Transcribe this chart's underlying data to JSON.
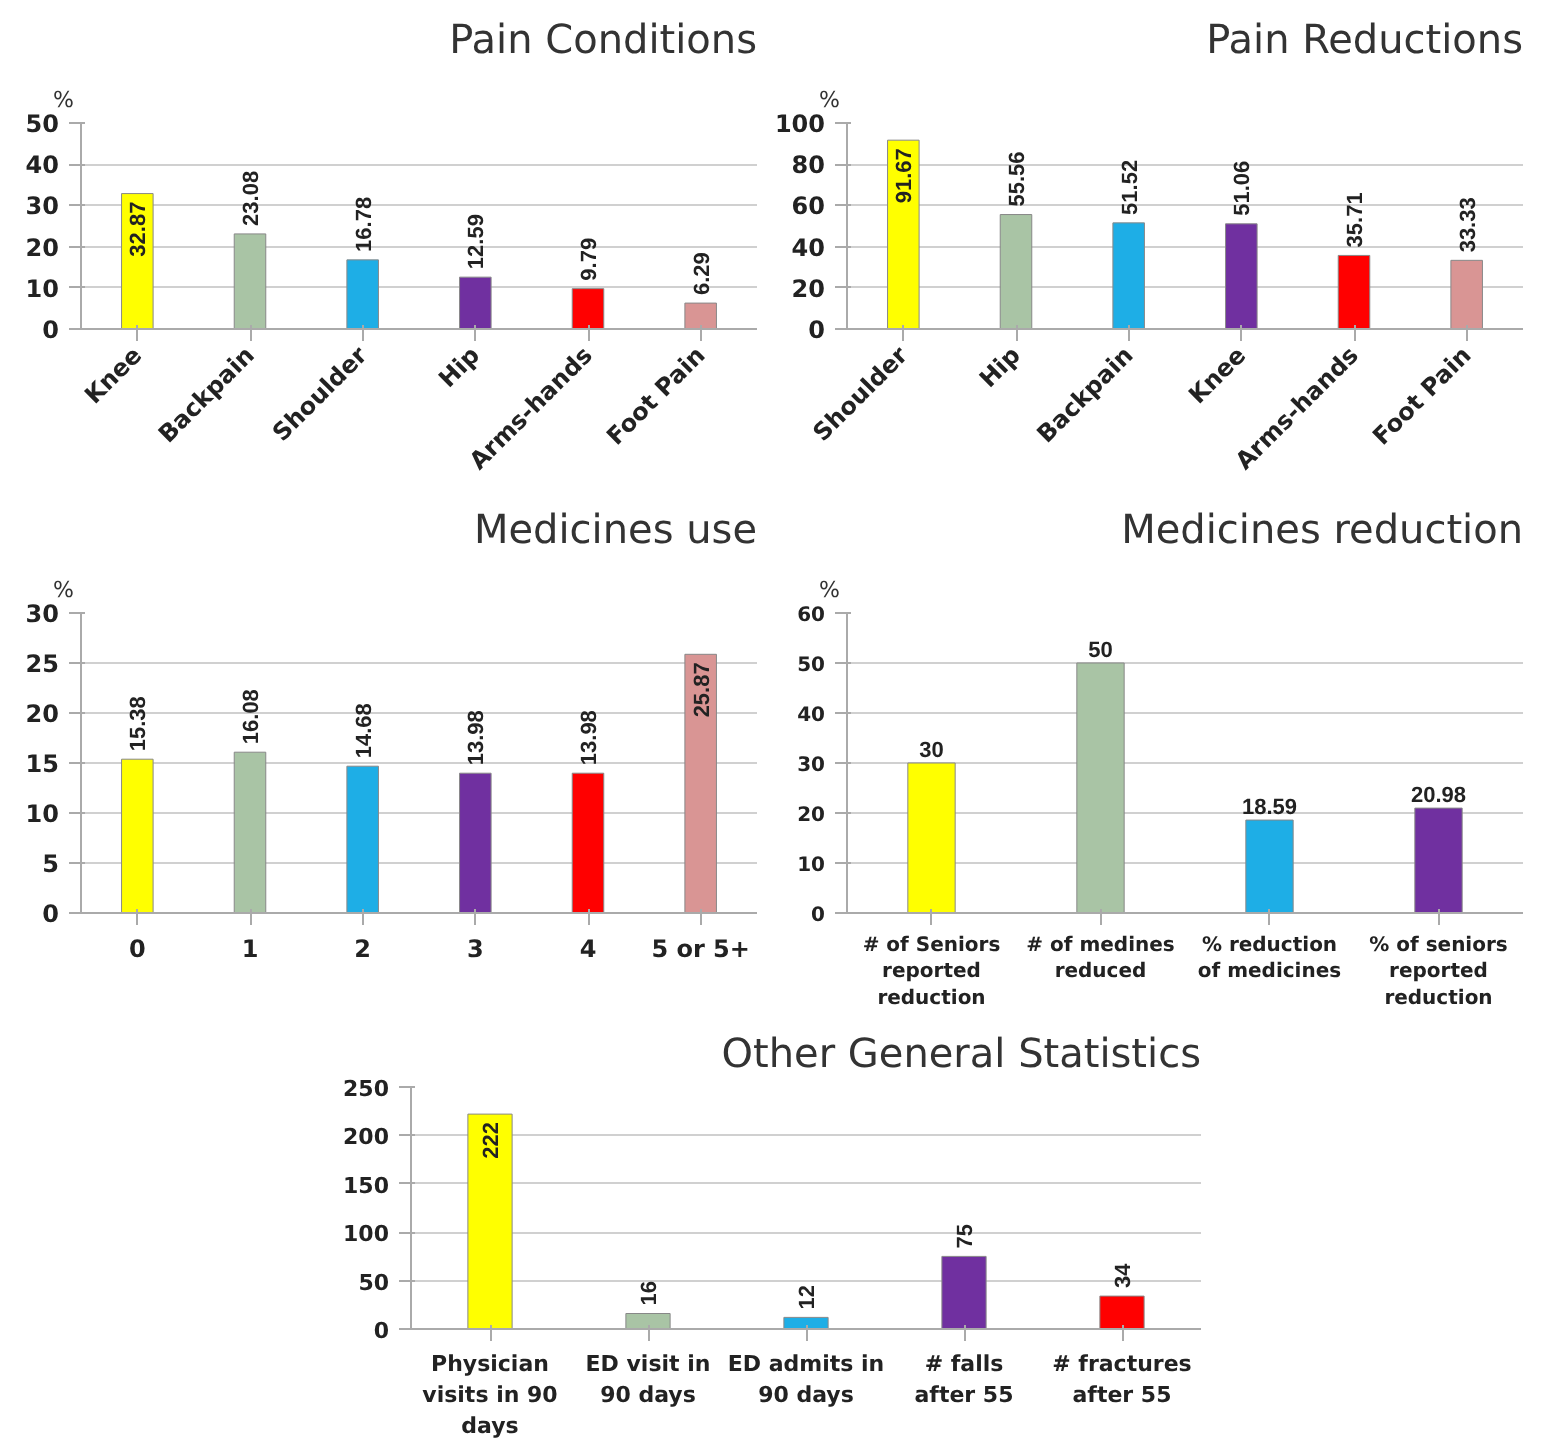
{
  "chart_data": [
    {
      "type": "bar",
      "title": "Pain Conditions",
      "ylabel": "%",
      "categories": [
        "Knee",
        "Backpain",
        "Shoulder",
        "Hip",
        "Arms-hands",
        "Foot Pain"
      ],
      "values": [
        32.87,
        23.08,
        16.78,
        12.59,
        9.79,
        6.29
      ],
      "colors": [
        "#ffff00",
        "#a9c4a5",
        "#1eaee6",
        "#7030a0",
        "#ff0000",
        "#d99594"
      ],
      "ylim": [
        0,
        50
      ],
      "yticks": [
        0,
        10,
        20,
        30,
        40,
        50
      ],
      "grid": "y",
      "data_labels": true
    },
    {
      "type": "bar",
      "title": "Pain Reductions",
      "ylabel": "%",
      "categories": [
        "Shoulder",
        "Hip",
        "Backpain",
        "Knee",
        "Arms-hands",
        "Foot Pain"
      ],
      "values": [
        91.67,
        55.56,
        51.52,
        51.06,
        35.71,
        33.33
      ],
      "colors": [
        "#ffff00",
        "#a9c4a5",
        "#1eaee6",
        "#7030a0",
        "#ff0000",
        "#d99594"
      ],
      "ylim": [
        0,
        100
      ],
      "yticks": [
        0,
        20,
        40,
        60,
        80,
        100
      ],
      "grid": "y",
      "data_labels": true
    },
    {
      "type": "bar",
      "title": "Medicines use",
      "ylabel": "%",
      "categories": [
        "0",
        "1",
        "2",
        "3",
        "4",
        "5 or 5+"
      ],
      "values": [
        15.38,
        16.08,
        14.68,
        13.98,
        13.98,
        25.87
      ],
      "colors": [
        "#ffff00",
        "#a9c4a5",
        "#1eaee6",
        "#7030a0",
        "#ff0000",
        "#d99594"
      ],
      "ylim": [
        0,
        30
      ],
      "yticks": [
        0,
        5,
        10,
        15,
        20,
        25,
        30
      ],
      "grid": "y",
      "data_labels": true
    },
    {
      "type": "bar",
      "title": "Medicines reduction",
      "ylabel": "%",
      "categories": [
        "# of Seniors reported reduction",
        "# of medines reduced",
        "% reduction of medicines",
        "% of seniors reported reduction"
      ],
      "values": [
        30,
        50,
        18.59,
        20.98
      ],
      "colors": [
        "#ffff00",
        "#a9c4a5",
        "#1eaee6",
        "#7030a0"
      ],
      "ylim": [
        0,
        60
      ],
      "yticks": [
        0,
        10,
        20,
        30,
        40,
        50,
        60
      ],
      "grid": "y",
      "data_labels": true
    },
    {
      "type": "bar",
      "title": "Other General Statistics",
      "categories": [
        "Physician visits in 90 days",
        "ED visit in 90 days",
        "ED admits in 90 days",
        "# falls after 55",
        "# fractures after 55"
      ],
      "values": [
        222,
        16,
        12,
        75,
        34
      ],
      "colors": [
        "#ffff00",
        "#a9c4a5",
        "#1eaee6",
        "#7030a0",
        "#ff0000"
      ],
      "ylim": [
        0,
        250
      ],
      "yticks": [
        0,
        50,
        100,
        150,
        200,
        250
      ],
      "grid": "y",
      "data_labels": true
    }
  ]
}
